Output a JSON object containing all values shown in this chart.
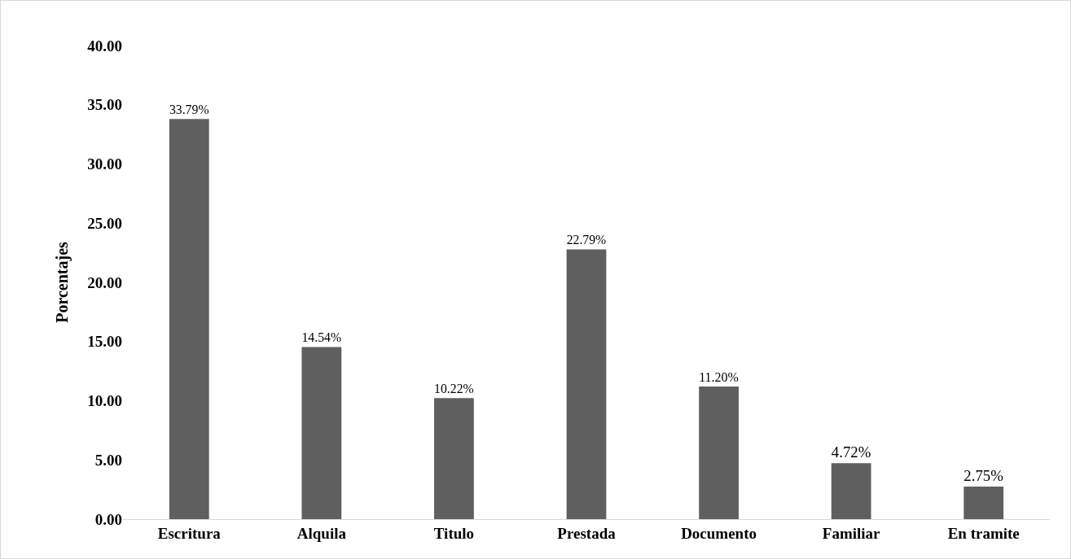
{
  "chart_data": {
    "type": "bar",
    "ylabel": "Porcentajes",
    "categories": [
      "Escritura",
      "Alquila",
      "Titulo",
      "Prestada",
      "Documento",
      "Familiar",
      "En tramite"
    ],
    "values": [
      33.79,
      14.54,
      10.22,
      22.79,
      11.2,
      4.72,
      2.75
    ],
    "value_labels": [
      "33.79%",
      "14.54%",
      "10.22%",
      "22.79%",
      "11.20%",
      "4.72%",
      "2.75%"
    ],
    "color": "#5f5f5f",
    "ylim": [
      0,
      40
    ],
    "yticks": [
      {
        "value": 0,
        "label": "0.00"
      },
      {
        "value": 5,
        "label": "5.00"
      },
      {
        "value": 10,
        "label": "10.00"
      },
      {
        "value": 15,
        "label": "15.00"
      },
      {
        "value": 20,
        "label": "20.00"
      },
      {
        "value": 25,
        "label": "25.00"
      },
      {
        "value": 30,
        "label": "30.00"
      },
      {
        "value": 35,
        "label": "35.00"
      },
      {
        "value": 40,
        "label": "40.00"
      }
    ],
    "grid": false,
    "legend": false
  }
}
